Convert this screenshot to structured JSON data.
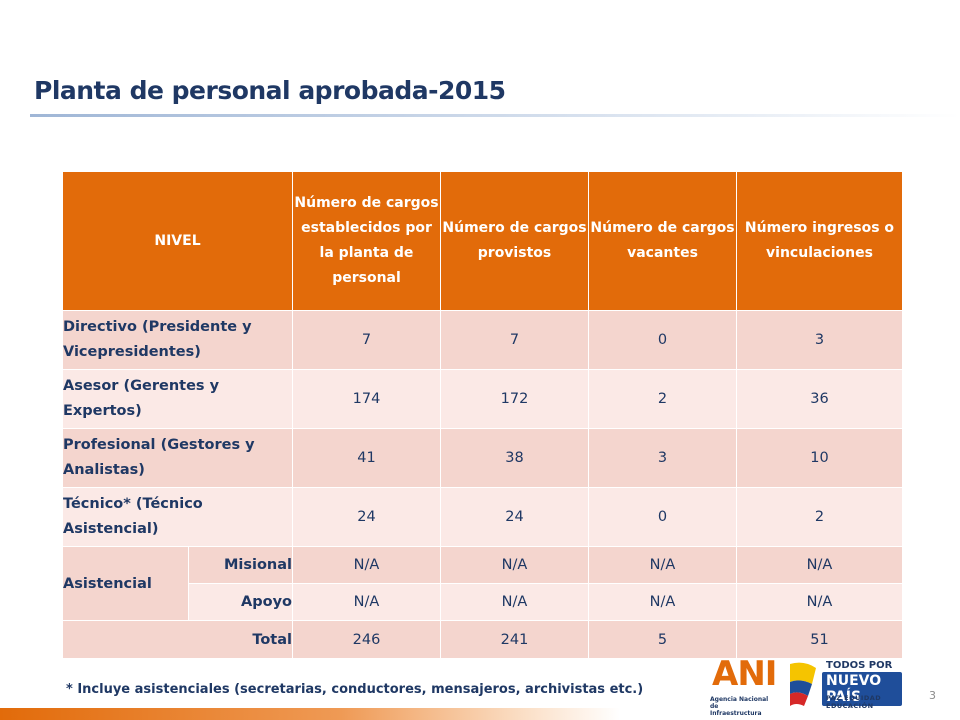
{
  "title": "Planta de personal aprobada-2015",
  "headers": [
    "NIVEL",
    "Número de cargos establecidos por la planta de personal",
    "Número de cargos provistos",
    "Número de cargos vacantes",
    "Número ingresos o vinculaciones"
  ],
  "rows": [
    {
      "level": "Directivo (Presidente y Vicepresidentes)",
      "established": "7",
      "provided": "7",
      "vacant": "0",
      "admissions": "3"
    },
    {
      "level": "Asesor (Gerentes y Expertos)",
      "established": "174",
      "provided": "172",
      "vacant": "2",
      "admissions": "36"
    },
    {
      "level": "Profesional (Gestores y Analistas)",
      "established": "41",
      "provided": "38",
      "vacant": "3",
      "admissions": "10"
    },
    {
      "level": "Técnico* (Técnico Asistencial)",
      "established": "24",
      "provided": "24",
      "vacant": "0",
      "admissions": "2"
    }
  ],
  "asistencial": {
    "label": "Asistencial",
    "subrows": [
      {
        "label": "Misional",
        "established": "N/A",
        "provided": "N/A",
        "vacant": "N/A",
        "admissions": "N/A"
      },
      {
        "label": "Apoyo",
        "established": "N/A",
        "provided": "N/A",
        "vacant": "N/A",
        "admissions": "N/A"
      }
    ]
  },
  "total": {
    "label": "Total",
    "established": "246",
    "provided": "241",
    "vacant": "5",
    "admissions": "51"
  },
  "footnote": "* Incluye asistenciales (secretarias, conductores, mensajeros, archivistas etc.)",
  "page_number": "3",
  "logos": {
    "ani_word": "ANI",
    "ani_sub": "Agencia Nacional de Infraestructura",
    "gov_line1": "TODOS POR UN",
    "gov_line2": "NUEVO PAÍS",
    "gov_line3": "PAZ EQUIDAD EDUCACIÓN"
  },
  "colors": {
    "header": "#e26b0a",
    "row_dark": "#f4d5ce",
    "row_light": "#fbe9e6",
    "text": "#1f3864"
  }
}
